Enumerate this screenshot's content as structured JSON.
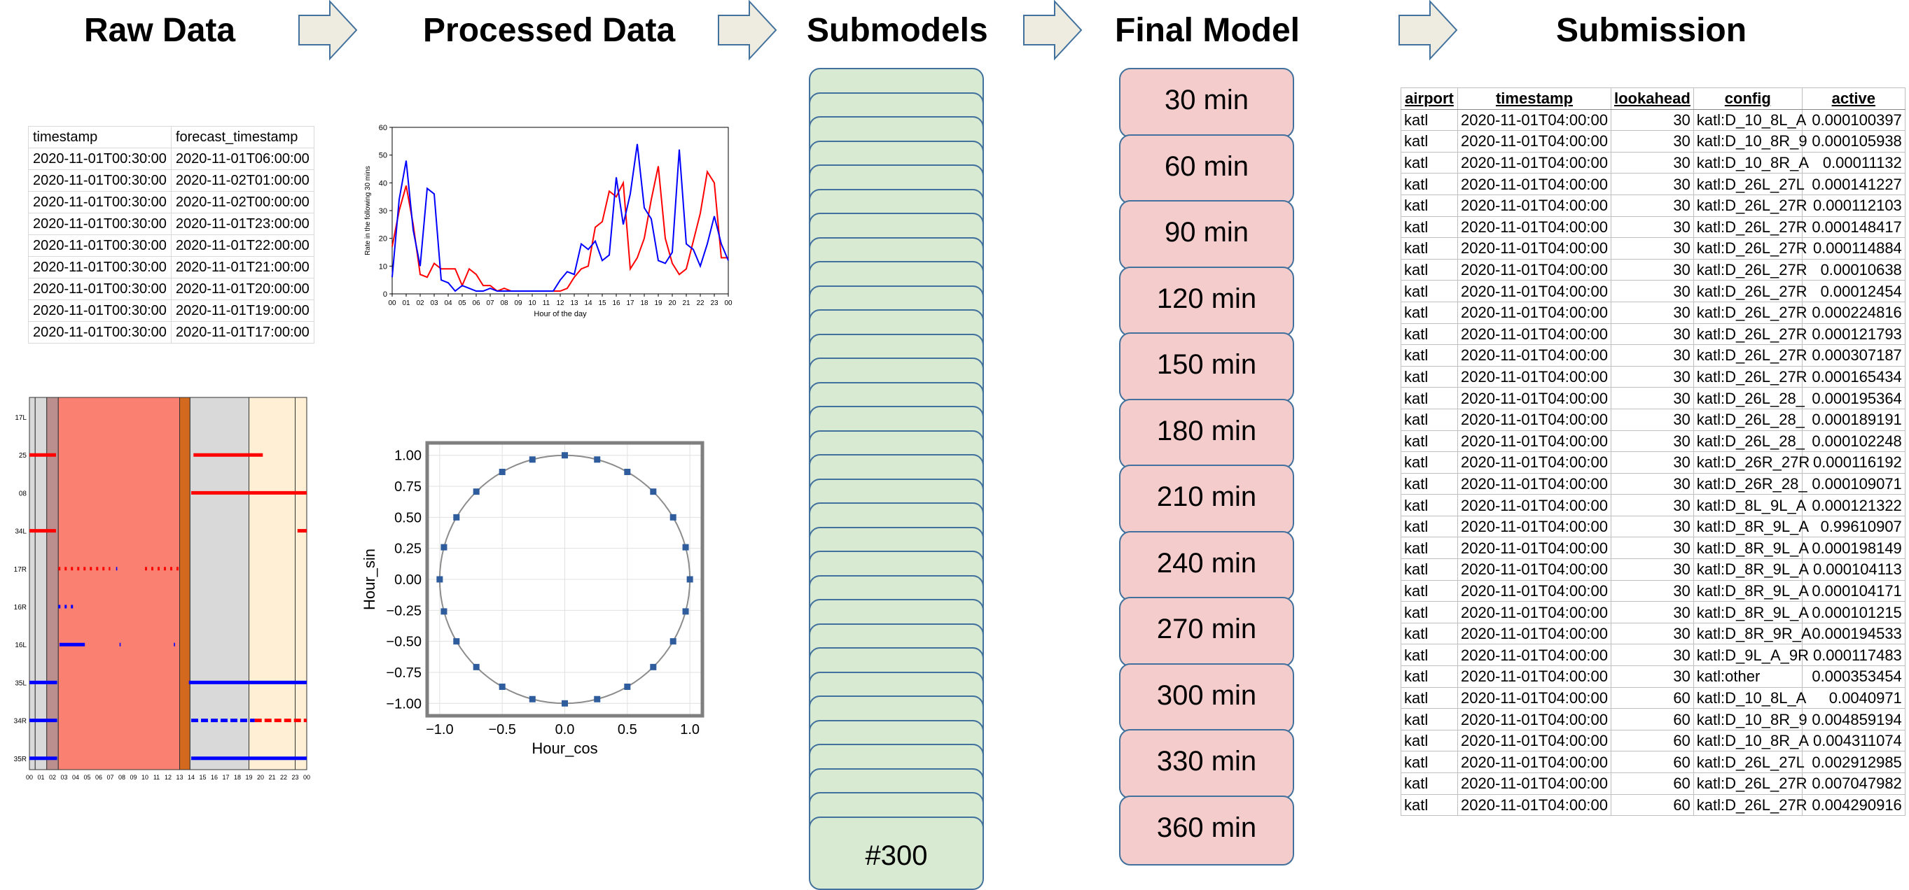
{
  "stages": {
    "raw": "Raw Data",
    "processed": "Processed Data",
    "submodels": "Submodels",
    "final": "Final Model",
    "submission": "Submission"
  },
  "raw_table": {
    "headers": [
      "timestamp",
      "forecast_timestamp"
    ],
    "rows": [
      [
        "2020-11-01T00:30:00",
        "2020-11-01T06:00:00"
      ],
      [
        "2020-11-01T00:30:00",
        "2020-11-02T01:00:00"
      ],
      [
        "2020-11-01T00:30:00",
        "2020-11-02T00:00:00"
      ],
      [
        "2020-11-01T00:30:00",
        "2020-11-01T23:00:00"
      ],
      [
        "2020-11-01T00:30:00",
        "2020-11-01T22:00:00"
      ],
      [
        "2020-11-01T00:30:00",
        "2020-11-01T21:00:00"
      ],
      [
        "2020-11-01T00:30:00",
        "2020-11-01T20:00:00"
      ],
      [
        "2020-11-01T00:30:00",
        "2020-11-01T19:00:00"
      ],
      [
        "2020-11-01T00:30:00",
        "2020-11-01T17:00:00"
      ]
    ]
  },
  "runway_chart": {
    "runways": [
      "17L",
      "25",
      "08",
      "34L",
      "17R",
      "16R",
      "16L",
      "35L",
      "34R",
      "35R"
    ],
    "x_ticks": [
      "00",
      "01",
      "02",
      "03",
      "04",
      "05",
      "06",
      "07",
      "08",
      "09",
      "10",
      "11",
      "12",
      "13",
      "14",
      "15",
      "16",
      "17",
      "18",
      "19",
      "20",
      "21",
      "22",
      "23",
      "00"
    ],
    "bands": [
      {
        "from": 0.0,
        "to": 0.5,
        "color": "#d9d9d9"
      },
      {
        "from": 0.5,
        "to": 1.5,
        "color": "#d9d9d9"
      },
      {
        "from": 1.5,
        "to": 2.5,
        "color": "#bc8f8f"
      },
      {
        "from": 2.5,
        "to": 13.0,
        "color": "#fa8072"
      },
      {
        "from": 13.0,
        "to": 13.9,
        "color": "#d2691e"
      },
      {
        "from": 13.9,
        "to": 19.0,
        "color": "#d9d9d9"
      },
      {
        "from": 19.0,
        "to": 23.0,
        "color": "#ffefd5"
      },
      {
        "from": 23.0,
        "to": 24.0,
        "color": "#ffefd5"
      }
    ],
    "events": [
      {
        "runway": "25",
        "from": 0.0,
        "to": 2.3,
        "color": "red",
        "style": "dense"
      },
      {
        "runway": "25",
        "from": 14.2,
        "to": 20.2,
        "color": "red",
        "style": "dense"
      },
      {
        "runway": "08",
        "from": 14.0,
        "to": 24.0,
        "color": "red",
        "style": "dense"
      },
      {
        "runway": "34L",
        "from": 0.0,
        "to": 2.3,
        "color": "red",
        "style": "dense"
      },
      {
        "runway": "34L",
        "from": 23.2,
        "to": 24.0,
        "color": "red",
        "style": "dense"
      },
      {
        "runway": "17R",
        "from": 2.5,
        "to": 7.0,
        "color": "red",
        "style": "sparse"
      },
      {
        "runway": "17R",
        "from": 10.0,
        "to": 13.0,
        "color": "red",
        "style": "sparse"
      },
      {
        "runway": "17R",
        "from": 7.5,
        "to": 7.6,
        "color": "blue",
        "style": "sparse"
      },
      {
        "runway": "16R",
        "from": 2.5,
        "to": 3.8,
        "color": "blue",
        "style": "sparse"
      },
      {
        "runway": "16L",
        "from": 2.6,
        "to": 4.8,
        "color": "blue",
        "style": "dense"
      },
      {
        "runway": "16L",
        "from": 7.8,
        "to": 7.9,
        "color": "blue",
        "style": "sparse"
      },
      {
        "runway": "16L",
        "from": 12.5,
        "to": 12.6,
        "color": "blue",
        "style": "sparse"
      },
      {
        "runway": "35L",
        "from": 0.0,
        "to": 2.4,
        "color": "blue",
        "style": "dense"
      },
      {
        "runway": "35L",
        "from": 13.8,
        "to": 24.0,
        "color": "blue",
        "style": "dense"
      },
      {
        "runway": "34R",
        "from": 0.0,
        "to": 2.4,
        "color": "blue",
        "style": "dense"
      },
      {
        "runway": "34R",
        "from": 14.0,
        "to": 19.5,
        "color": "blue",
        "style": "dashed"
      },
      {
        "runway": "34R",
        "from": 19.5,
        "to": 24.0,
        "color": "red",
        "style": "dashed"
      },
      {
        "runway": "35R",
        "from": 0.0,
        "to": 2.4,
        "color": "blue",
        "style": "dense"
      },
      {
        "runway": "35R",
        "from": 14.0,
        "to": 24.0,
        "color": "blue",
        "style": "dense"
      }
    ]
  },
  "chart_data": [
    {
      "type": "line",
      "title": "",
      "xlabel": "Hour of the day",
      "ylabel": "Rate in the following 30 mins",
      "x_tick_labels": [
        "00",
        "01",
        "02",
        "03",
        "04",
        "05",
        "06",
        "07",
        "08",
        "09",
        "10",
        "11",
        "12",
        "13",
        "14",
        "15",
        "16",
        "17",
        "18",
        "19",
        "20",
        "21",
        "22",
        "23",
        "00"
      ],
      "y_ticks": [
        0,
        10,
        20,
        30,
        40,
        50,
        60
      ],
      "xlim": [
        0,
        24
      ],
      "ylim": [
        0,
        60
      ],
      "series": [
        {
          "color": "#ff0000",
          "x": [
            0,
            0.5,
            1,
            1.5,
            2,
            2.5,
            3,
            3.5,
            4,
            4.5,
            5,
            5.5,
            6,
            6.5,
            7,
            7.5,
            8,
            8.5,
            9,
            9.5,
            10,
            10.5,
            11,
            11.5,
            12,
            12.5,
            13,
            13.5,
            14,
            14.5,
            15,
            15.5,
            16,
            16.5,
            17,
            17.5,
            18,
            18.5,
            19,
            19.5,
            20,
            20.5,
            21,
            21.5,
            22,
            22.5,
            23,
            23.5,
            24
          ],
          "values": [
            17,
            30,
            39,
            25,
            7,
            6,
            11,
            9,
            9,
            9,
            3,
            9,
            7,
            3,
            3,
            1,
            2,
            1,
            1,
            1,
            1,
            1,
            1,
            1,
            1,
            2,
            6,
            9,
            10,
            24,
            26,
            37,
            35,
            40,
            9,
            13,
            20,
            34,
            46,
            20,
            11,
            7,
            9,
            19,
            29,
            44,
            40,
            13,
            13
          ]
        },
        {
          "color": "#0000ff",
          "x": [
            0,
            0.5,
            1,
            1.5,
            2,
            2.5,
            3,
            3.5,
            4,
            4.5,
            5,
            5.5,
            6,
            6.5,
            7,
            7.5,
            8,
            8.5,
            9,
            9.5,
            10,
            10.5,
            11,
            11.5,
            12,
            12.5,
            13,
            13.5,
            14,
            14.5,
            15,
            15.5,
            16,
            16.5,
            17,
            17.5,
            18,
            18.5,
            19,
            19.5,
            20,
            20.5,
            21,
            21.5,
            22,
            22.5,
            23,
            23.5,
            24
          ],
          "values": [
            6,
            34,
            48,
            23,
            10,
            38,
            36,
            5,
            4,
            1,
            3,
            2,
            1,
            1,
            2,
            1,
            1,
            1,
            1,
            1,
            1,
            1,
            1,
            1,
            5,
            8,
            7,
            18,
            16,
            19,
            12,
            14,
            42,
            25,
            36,
            54,
            31,
            27,
            12,
            11,
            15,
            52,
            18,
            16,
            10,
            18,
            28,
            18,
            12
          ]
        }
      ]
    },
    {
      "type": "scatter",
      "title": "",
      "xlabel": "Hour_cos",
      "ylabel": "Hour_sin",
      "x_ticks": [
        -1.0,
        -0.5,
        0.0,
        0.5,
        1.0
      ],
      "x_tick_labels": [
        "−1.0",
        "−0.5",
        "0.0",
        "0.5",
        "1.0"
      ],
      "y_ticks": [
        -1.0,
        -0.75,
        -0.5,
        -0.25,
        0.0,
        0.25,
        0.5,
        0.75,
        1.0
      ],
      "y_tick_labels": [
        "−1.00",
        "−0.75",
        "−0.50",
        "−0.25",
        "0.00",
        "0.25",
        "0.50",
        "0.75",
        "1.00"
      ],
      "xlim": [
        -1.1,
        1.1
      ],
      "ylim": [
        -1.1,
        1.1
      ],
      "points_per_cycle": 24,
      "grid": true
    }
  ],
  "submodels": {
    "count_label": "#300"
  },
  "final_models": [
    "30 min",
    "60 min",
    "90 min",
    "120 min",
    "150 min",
    "180 min",
    "210 min",
    "240 min",
    "270 min",
    "300 min",
    "330 min",
    "360 min"
  ],
  "submission_table": {
    "headers": [
      "airport",
      "timestamp",
      "lookahead",
      "config",
      "active"
    ],
    "rows": [
      [
        "katl",
        "2020-11-01T04:00:00",
        "30",
        "katl:D_10_8L_A",
        "0.000100397"
      ],
      [
        "katl",
        "2020-11-01T04:00:00",
        "30",
        "katl:D_10_8R_9",
        "0.000105938"
      ],
      [
        "katl",
        "2020-11-01T04:00:00",
        "30",
        "katl:D_10_8R_A",
        "0.00011132"
      ],
      [
        "katl",
        "2020-11-01T04:00:00",
        "30",
        "katl:D_26L_27L",
        "0.000141227"
      ],
      [
        "katl",
        "2020-11-01T04:00:00",
        "30",
        "katl:D_26L_27R",
        "0.000112103"
      ],
      [
        "katl",
        "2020-11-01T04:00:00",
        "30",
        "katl:D_26L_27R",
        "0.000148417"
      ],
      [
        "katl",
        "2020-11-01T04:00:00",
        "30",
        "katl:D_26L_27R",
        "0.000114884"
      ],
      [
        "katl",
        "2020-11-01T04:00:00",
        "30",
        "katl:D_26L_27R",
        "0.00010638"
      ],
      [
        "katl",
        "2020-11-01T04:00:00",
        "30",
        "katl:D_26L_27R",
        "0.00012454"
      ],
      [
        "katl",
        "2020-11-01T04:00:00",
        "30",
        "katl:D_26L_27R",
        "0.000224816"
      ],
      [
        "katl",
        "2020-11-01T04:00:00",
        "30",
        "katl:D_26L_27R",
        "0.000121793"
      ],
      [
        "katl",
        "2020-11-01T04:00:00",
        "30",
        "katl:D_26L_27R",
        "0.000307187"
      ],
      [
        "katl",
        "2020-11-01T04:00:00",
        "30",
        "katl:D_26L_27R",
        "0.000165434"
      ],
      [
        "katl",
        "2020-11-01T04:00:00",
        "30",
        "katl:D_26L_28_",
        "0.000195364"
      ],
      [
        "katl",
        "2020-11-01T04:00:00",
        "30",
        "katl:D_26L_28_",
        "0.000189191"
      ],
      [
        "katl",
        "2020-11-01T04:00:00",
        "30",
        "katl:D_26L_28_",
        "0.000102248"
      ],
      [
        "katl",
        "2020-11-01T04:00:00",
        "30",
        "katl:D_26R_27R",
        "0.000116192"
      ],
      [
        "katl",
        "2020-11-01T04:00:00",
        "30",
        "katl:D_26R_28_",
        "0.000109071"
      ],
      [
        "katl",
        "2020-11-01T04:00:00",
        "30",
        "katl:D_8L_9L_A",
        "0.000121322"
      ],
      [
        "katl",
        "2020-11-01T04:00:00",
        "30",
        "katl:D_8R_9L_A",
        "0.99610907"
      ],
      [
        "katl",
        "2020-11-01T04:00:00",
        "30",
        "katl:D_8R_9L_A",
        "0.000198149"
      ],
      [
        "katl",
        "2020-11-01T04:00:00",
        "30",
        "katl:D_8R_9L_A",
        "0.000104113"
      ],
      [
        "katl",
        "2020-11-01T04:00:00",
        "30",
        "katl:D_8R_9L_A",
        "0.000104171"
      ],
      [
        "katl",
        "2020-11-01T04:00:00",
        "30",
        "katl:D_8R_9L_A",
        "0.000101215"
      ],
      [
        "katl",
        "2020-11-01T04:00:00",
        "30",
        "katl:D_8R_9R_A",
        "0.000194533"
      ],
      [
        "katl",
        "2020-11-01T04:00:00",
        "30",
        "katl:D_9L_A_9R",
        "0.000117483"
      ],
      [
        "katl",
        "2020-11-01T04:00:00",
        "30",
        "katl:other",
        "0.000353454"
      ],
      [
        "katl",
        "2020-11-01T04:00:00",
        "60",
        "katl:D_10_8L_A",
        "0.0040971"
      ],
      [
        "katl",
        "2020-11-01T04:00:00",
        "60",
        "katl:D_10_8R_9",
        "0.004859194"
      ],
      [
        "katl",
        "2020-11-01T04:00:00",
        "60",
        "katl:D_10_8R_A",
        "0.004311074"
      ],
      [
        "katl",
        "2020-11-01T04:00:00",
        "60",
        "katl:D_26L_27L",
        "0.002912985"
      ],
      [
        "katl",
        "2020-11-01T04:00:00",
        "60",
        "katl:D_26L_27R",
        "0.007047982"
      ],
      [
        "katl",
        "2020-11-01T04:00:00",
        "60",
        "katl:D_26L_27R",
        "0.004290916"
      ]
    ]
  },
  "colors": {
    "arrow_fill": "#eeece1",
    "arrow_stroke": "#41719c",
    "submodel_fill": "#d9ead3",
    "final_fill": "#f4cccc",
    "box_stroke": "#41719c"
  }
}
